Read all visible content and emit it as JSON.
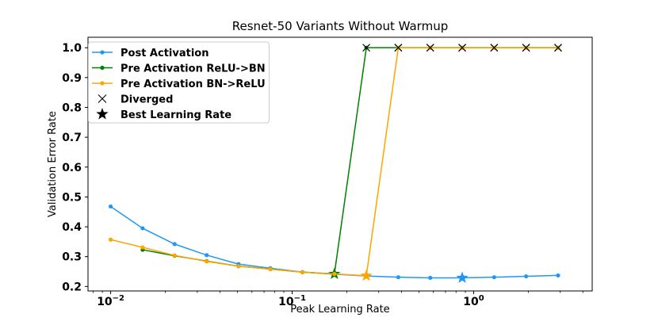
{
  "chart_data": {
    "type": "line",
    "title": "Resnet-50 Variants Without Warmup",
    "xlabel": "Peak Learning Rate",
    "ylabel": "Validation Error Rate",
    "xscale": "log",
    "xlim": [
      0.0075,
      4.5
    ],
    "ylim": [
      0.185,
      1.035
    ],
    "xticks": [
      {
        "value": 0.01,
        "base": "10",
        "exp": "−2"
      },
      {
        "value": 0.1,
        "base": "10",
        "exp": "−1"
      },
      {
        "value": 1,
        "base": "10",
        "exp": "0"
      }
    ],
    "yticks": [
      {
        "value": 0.2,
        "label": "0.2"
      },
      {
        "value": 0.3,
        "label": "0.3"
      },
      {
        "value": 0.4,
        "label": "0.4"
      },
      {
        "value": 0.5,
        "label": "0.5"
      },
      {
        "value": 0.6,
        "label": "0.6"
      },
      {
        "value": 0.7,
        "label": "0.7"
      },
      {
        "value": 0.8,
        "label": "0.8"
      },
      {
        "value": 0.9,
        "label": "0.9"
      },
      {
        "value": 1.0,
        "label": "1.0"
      }
    ],
    "grid": false,
    "legend_position": "top-left",
    "series": [
      {
        "name": "Post Activation",
        "color": "#2196f3",
        "x": [
          0.01,
          0.015,
          0.0225,
          0.0338,
          0.0506,
          0.0759,
          0.1139,
          0.1709,
          0.2563,
          0.3844,
          0.5767,
          0.865,
          1.2975,
          1.9462,
          2.9193
        ],
        "y": [
          0.468,
          0.395,
          0.342,
          0.305,
          0.275,
          0.261,
          0.248,
          0.241,
          0.235,
          0.231,
          0.229,
          0.229,
          0.231,
          0.234,
          0.237
        ],
        "best_x": 0.865,
        "best_y": 0.229
      },
      {
        "name": "Pre Activation ReLU->BN",
        "color": "#008000",
        "x": [
          0.015,
          0.0225,
          0.0338,
          0.0506,
          0.0759,
          0.1139,
          0.1709,
          0.2563,
          0.3844,
          0.5767,
          0.865,
          1.2975,
          1.9462,
          2.9193
        ],
        "y": [
          0.323,
          0.303,
          0.285,
          0.268,
          0.258,
          0.248,
          0.242,
          1.0,
          1.0,
          1.0,
          1.0,
          1.0,
          1.0,
          1.0
        ],
        "diverged_x": [
          0.2563,
          0.3844,
          0.5767,
          0.865,
          1.2975,
          1.9462,
          2.9193
        ],
        "best_x": 0.1709,
        "best_y": 0.242
      },
      {
        "name": "Pre Activation BN->ReLU",
        "color": "#ffa500",
        "x": [
          0.01,
          0.015,
          0.0225,
          0.0338,
          0.0506,
          0.0759,
          0.1139,
          0.1709,
          0.2563,
          0.3844,
          0.5767,
          0.865,
          1.2975,
          1.9462,
          2.9193
        ],
        "y": [
          0.357,
          0.331,
          0.304,
          0.284,
          0.268,
          0.258,
          0.248,
          0.242,
          0.236,
          1.0,
          1.0,
          1.0,
          1.0,
          1.0,
          1.0
        ],
        "diverged_x": [
          0.3844,
          0.5767,
          0.865,
          1.2975,
          1.9462,
          2.9193
        ],
        "best_x": 0.2563,
        "best_y": 0.236
      }
    ],
    "legend": [
      {
        "label": "Post Activation",
        "marker": "line",
        "color": "#2196f3"
      },
      {
        "label": "Pre Activation ReLU->BN",
        "marker": "line",
        "color": "#008000"
      },
      {
        "label": "Pre Activation BN->ReLU",
        "marker": "line",
        "color": "#ffa500"
      },
      {
        "label": "Diverged",
        "marker": "x",
        "color": "#000000"
      },
      {
        "label": "Best Learning Rate",
        "marker": "star",
        "color": "#000000"
      }
    ]
  }
}
